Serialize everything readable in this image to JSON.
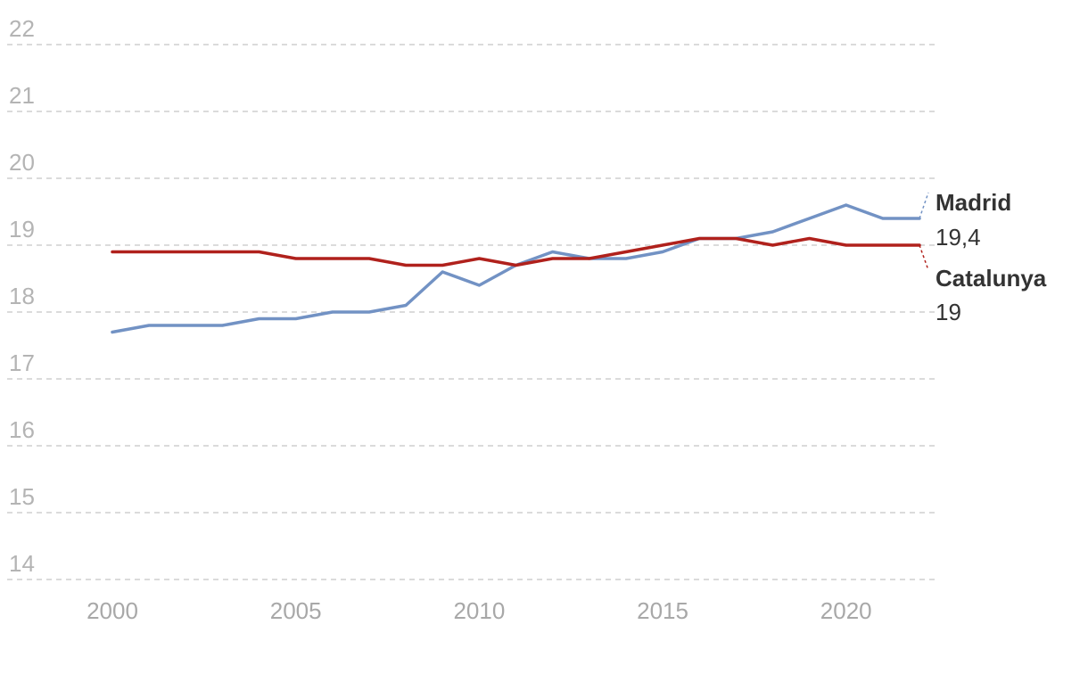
{
  "chart_data": {
    "type": "line",
    "title": "",
    "xlabel": "",
    "ylabel": "",
    "ylim": [
      14,
      22
    ],
    "xlim": [
      2000,
      2022
    ],
    "yticks": [
      "14",
      "15",
      "16",
      "17",
      "18",
      "19",
      "20",
      "21",
      "22"
    ],
    "xticks": [
      "2000",
      "2005",
      "2010",
      "2015",
      "2020"
    ],
    "grid": true,
    "x": [
      2000,
      2001,
      2002,
      2003,
      2004,
      2005,
      2006,
      2007,
      2008,
      2009,
      2010,
      2011,
      2012,
      2013,
      2014,
      2015,
      2016,
      2017,
      2018,
      2019,
      2020,
      2021,
      2022
    ],
    "series": [
      {
        "name": "Madrid",
        "end_label": "19,4",
        "color": "#7292c4",
        "values": [
          17.7,
          17.8,
          17.8,
          17.8,
          17.9,
          17.9,
          18.0,
          18.0,
          18.1,
          18.6,
          18.4,
          18.7,
          18.9,
          18.8,
          18.8,
          18.9,
          19.1,
          19.1,
          19.2,
          19.4,
          19.6,
          19.4,
          19.4
        ]
      },
      {
        "name": "Catalunya",
        "end_label": "19",
        "color": "#b0211c",
        "values": [
          18.9,
          18.9,
          18.9,
          18.9,
          18.9,
          18.8,
          18.8,
          18.8,
          18.7,
          18.7,
          18.8,
          18.7,
          18.8,
          18.8,
          18.9,
          19.0,
          19.1,
          19.1,
          19.0,
          19.1,
          19.0,
          19.0,
          19.0
        ]
      }
    ]
  }
}
